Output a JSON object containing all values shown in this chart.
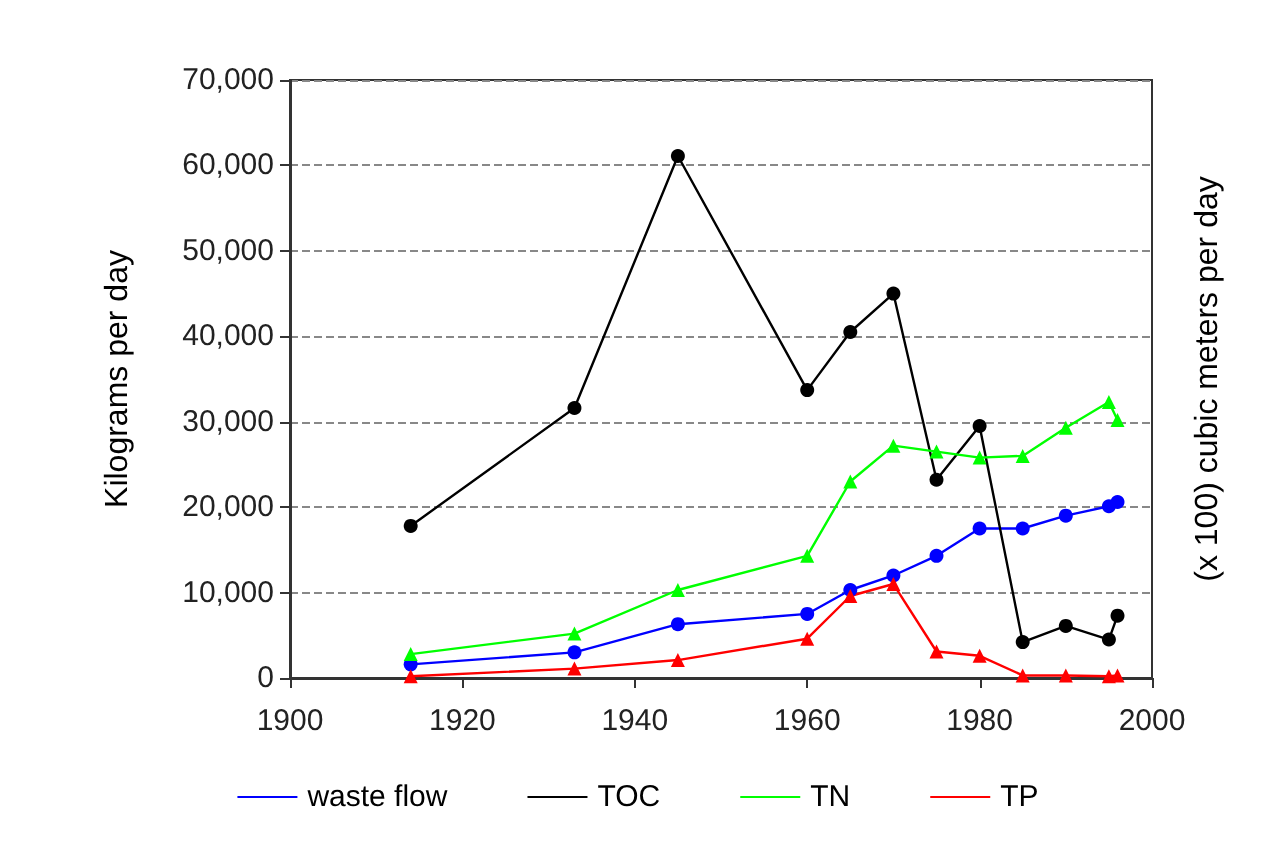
{
  "chart_data": {
    "type": "line",
    "ylabel": "Kilograms per day",
    "y2label": "(x 100) cubic meters per day",
    "xlim": [
      1900,
      2000
    ],
    "xticks": [
      1900,
      1920,
      1940,
      1960,
      1980,
      2000
    ],
    "ylim": [
      0,
      70000
    ],
    "yticks": [
      {
        "value": 0,
        "label": "0"
      },
      {
        "value": 10000,
        "label": "10,000"
      },
      {
        "value": 20000,
        "label": "20,000"
      },
      {
        "value": 30000,
        "label": "30,000"
      },
      {
        "value": 40000,
        "label": "40,000"
      },
      {
        "value": 50000,
        "label": "50,000"
      },
      {
        "value": 60000,
        "label": "60,000"
      },
      {
        "value": 70000,
        "label": "70,000"
      }
    ],
    "grid": "y",
    "legend": "bottom",
    "line_style": "solid",
    "x": [
      1914,
      1933,
      1945,
      1960,
      1965,
      1970,
      1975,
      1980,
      1985,
      1990,
      1995,
      1996
    ],
    "series": [
      {
        "name": "waste flow",
        "color": "#0000ff",
        "marker": "circle",
        "values": [
          1600,
          3000,
          6300,
          7500,
          10300,
          12000,
          14300,
          17500,
          17500,
          19000,
          20100,
          20600
        ]
      },
      {
        "name": "TOC",
        "color": "#000000",
        "marker": "circle",
        "values": [
          17800,
          31600,
          61100,
          33700,
          40500,
          45000,
          23200,
          29500,
          4200,
          6100,
          4500,
          7300
        ]
      },
      {
        "name": "TN",
        "color": "#00ff00",
        "marker": "triangle",
        "values": [
          2800,
          5200,
          10300,
          14300,
          23000,
          27200,
          26500,
          25800,
          26000,
          29300,
          32300,
          30200
        ]
      },
      {
        "name": "TP",
        "color": "#ff0000",
        "marker": "triangle",
        "values": [
          200,
          1100,
          2100,
          4600,
          9600,
          11000,
          3100,
          2600,
          300,
          300,
          200,
          300
        ]
      }
    ]
  }
}
